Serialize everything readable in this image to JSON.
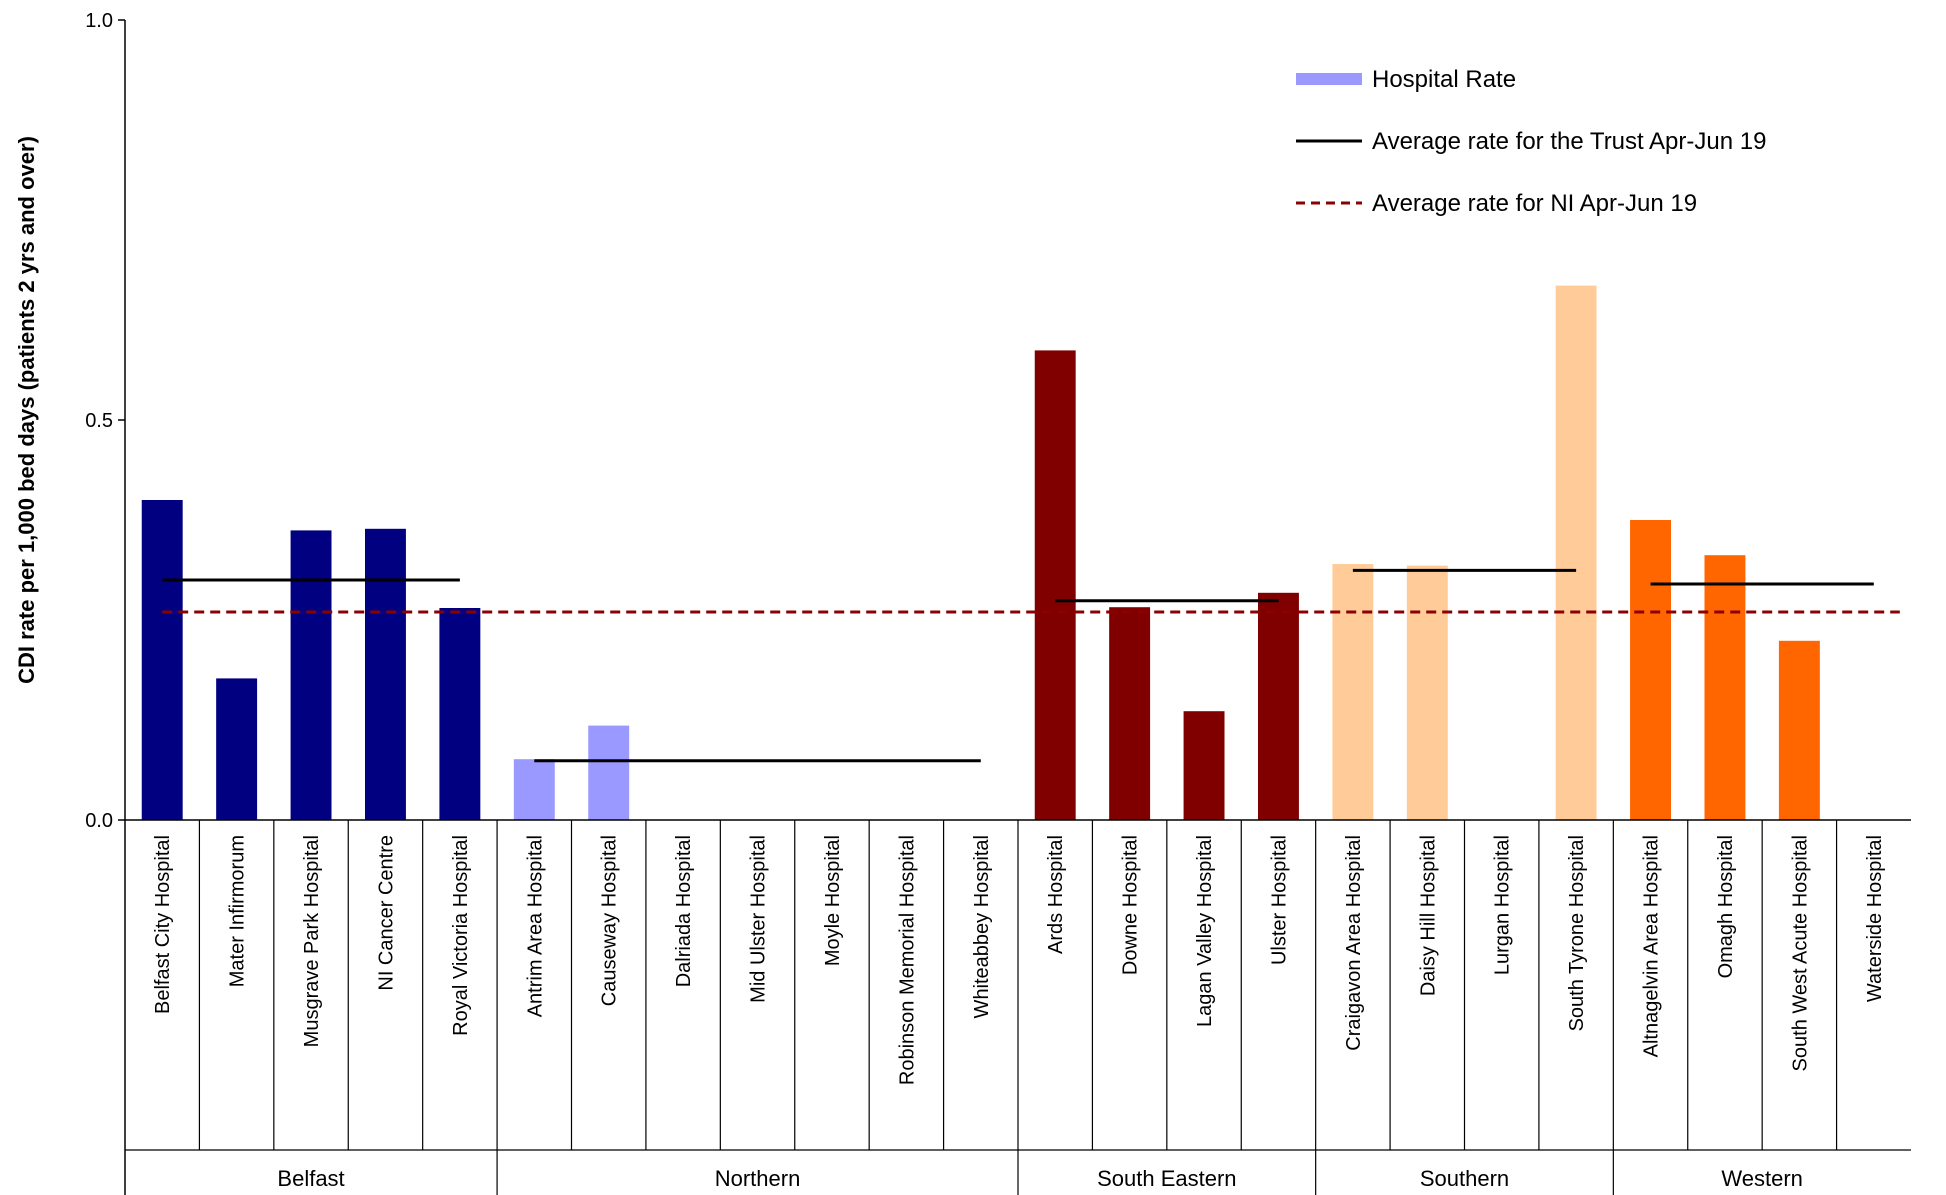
{
  "chart_data": {
    "type": "bar",
    "title": "",
    "xlabel": "",
    "ylabel": "CDI rate  per 1,000 bed days (patients 2 yrs and over)",
    "ylim": [
      0,
      1
    ],
    "yticks": [
      "0.0",
      "0.5",
      "1.0"
    ],
    "grid": false,
    "legend_position": "top-right",
    "legend": {
      "hospital_rate": "Hospital Rate",
      "trust_average": "Average rate for the Trust Apr-Jun 19",
      "ni_average": "Average rate for NI Apr-Jun 19"
    },
    "ni_average": 0.26,
    "colors": {
      "ni_line": "#8B0000",
      "trust_line": "#000000",
      "legend_bar": "#9999FF"
    },
    "groups": [
      {
        "name": "Belfast",
        "color": "#000080",
        "trust_average": 0.3,
        "hospitals": [
          {
            "name": "Belfast City Hospital",
            "value": 0.4
          },
          {
            "name": "Mater Infirmorum",
            "value": 0.177
          },
          {
            "name": "Musgrave Park Hospital",
            "value": 0.362
          },
          {
            "name": "NI Cancer Centre",
            "value": 0.364
          },
          {
            "name": "Royal Victoria Hospital",
            "value": 0.265
          }
        ]
      },
      {
        "name": "Northern",
        "color": "#9999FF",
        "trust_average": 0.074,
        "hospitals": [
          {
            "name": "Antrim Area Hospital",
            "value": 0.076
          },
          {
            "name": "Causeway Hospital",
            "value": 0.118
          },
          {
            "name": "Dalriada Hospital",
            "value": 0
          },
          {
            "name": "Mid Ulster Hospital",
            "value": 0
          },
          {
            "name": "Moyle Hospital",
            "value": 0
          },
          {
            "name": "Robinson Memorial Hospital",
            "value": 0
          },
          {
            "name": "Whiteabbey Hospital",
            "value": 0
          }
        ]
      },
      {
        "name": "South Eastern",
        "color": "#800000",
        "trust_average": 0.274,
        "hospitals": [
          {
            "name": "Ards Hospital",
            "value": 0.587
          },
          {
            "name": "Downe Hospital",
            "value": 0.266
          },
          {
            "name": "Lagan Valley Hospital",
            "value": 0.136
          },
          {
            "name": "Ulster Hospital",
            "value": 0.284
          }
        ]
      },
      {
        "name": "Southern",
        "color": "#FFCC99",
        "trust_average": 0.312,
        "hospitals": [
          {
            "name": "Craigavon Area Hospital",
            "value": 0.32
          },
          {
            "name": "Daisy Hill Hospital",
            "value": 0.318
          },
          {
            "name": "Lurgan Hospital",
            "value": 0
          },
          {
            "name": "South Tyrone Hospital",
            "value": 0.668
          }
        ]
      },
      {
        "name": "Western",
        "color": "#FF6600",
        "trust_average": 0.295,
        "hospitals": [
          {
            "name": "Altnagelvin Area Hospital",
            "value": 0.375
          },
          {
            "name": "Omagh Hospital",
            "value": 0.331
          },
          {
            "name": "South West Acute Hospital",
            "value": 0.224
          },
          {
            "name": "Waterside Hospital",
            "value": 0
          }
        ]
      }
    ]
  }
}
